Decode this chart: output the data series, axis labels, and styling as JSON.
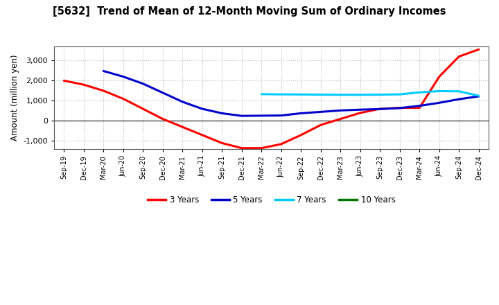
{
  "title": "[5632]  Trend of Mean of 12-Month Moving Sum of Ordinary Incomes",
  "ylabel": "Amount (million yen)",
  "background_color": "#ffffff",
  "grid_color": "#bbbbbb",
  "ylim": [
    -1400,
    3700
  ],
  "yticks": [
    -1000,
    0,
    1000,
    2000,
    3000
  ],
  "series": {
    "3 Years": {
      "color": "#ff0000",
      "linewidth": 2.2,
      "x": [
        0,
        1,
        2,
        3,
        4,
        5,
        6,
        7,
        8,
        9,
        10,
        11,
        12,
        13,
        14,
        15,
        16,
        17,
        18,
        19,
        20,
        21
      ],
      "y": [
        2000,
        1800,
        1500,
        1100,
        600,
        100,
        -300,
        -700,
        -1100,
        -1350,
        -1350,
        -1150,
        -700,
        -200,
        100,
        400,
        600,
        650,
        650,
        2200,
        3200,
        3550
      ]
    },
    "5 Years": {
      "color": "#0000cc",
      "linewidth": 2.2,
      "x": [
        2,
        3,
        4,
        5,
        6,
        7,
        8,
        9,
        10,
        11,
        12,
        13,
        14,
        15,
        16,
        17,
        18,
        19,
        20,
        21
      ],
      "y": [
        2480,
        2200,
        1850,
        1400,
        950,
        600,
        380,
        250,
        260,
        270,
        380,
        450,
        520,
        560,
        590,
        640,
        750,
        900,
        1080,
        1220
      ]
    },
    "7 Years": {
      "color": "#00ccff",
      "linewidth": 2.2,
      "x": [
        10,
        11,
        12,
        13,
        14,
        15,
        16,
        17,
        18,
        19,
        20,
        21
      ],
      "y": [
        1330,
        1320,
        1315,
        1305,
        1300,
        1300,
        1305,
        1320,
        1420,
        1480,
        1470,
        1250
      ]
    },
    "10 Years": {
      "color": "#007700",
      "linewidth": 2.2,
      "x": [],
      "y": []
    }
  },
  "x_labels": [
    "Sep-19",
    "Dec-19",
    "Mar-20",
    "Jun-20",
    "Sep-20",
    "Dec-20",
    "Mar-21",
    "Jun-21",
    "Sep-21",
    "Dec-21",
    "Mar-22",
    "Jun-22",
    "Sep-22",
    "Dec-22",
    "Mar-23",
    "Jun-23",
    "Sep-23",
    "Dec-23",
    "Mar-24",
    "Jun-24",
    "Sep-24",
    "Dec-24"
  ],
  "legend_labels": [
    "3 Years",
    "5 Years",
    "7 Years",
    "10 Years"
  ],
  "legend_colors": [
    "#ff0000",
    "#0000cc",
    "#00ccff",
    "#007700"
  ]
}
